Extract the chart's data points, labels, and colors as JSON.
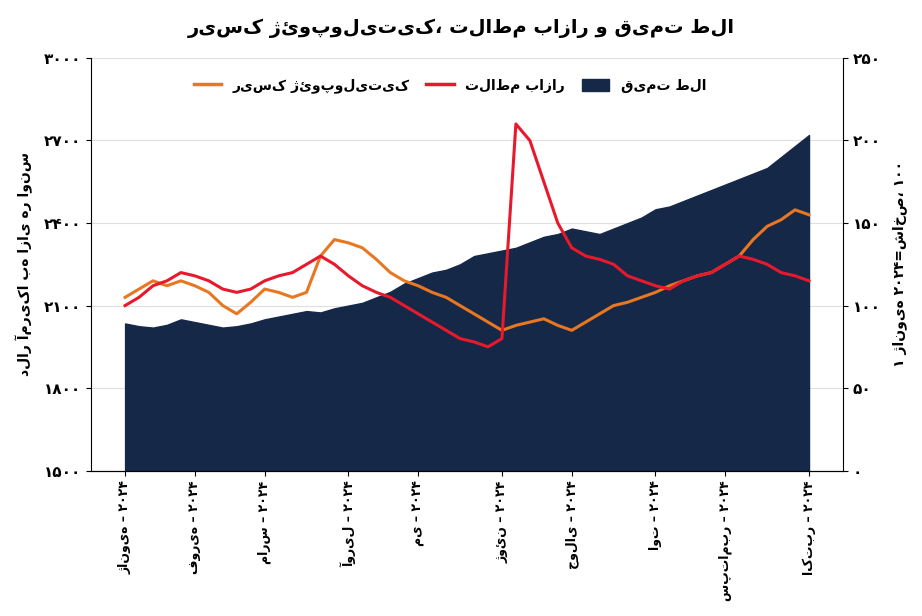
{
  "title": "ریسک ژئوپولیتیک، تلاطم بازار و قیمت طلا",
  "ylabel_left": "دلار آمریکا به ازای هر اونس",
  "ylabel_right": "۱ ژانویه ۲۰۲۴=شاخص، ۱۰۰",
  "x_labels": [
    "ژانویه – ۲۰۲۴",
    "فوریه – ۲۰۲۴",
    "مارس – ۲۰۲۴",
    "آوریل – ۲۰۲۴",
    "می – ۲۰۲۴",
    "ژوئن – ۲۰۲۴",
    "جولای – ۲۰۲۴",
    "اوت – ۲۰۲۴",
    "سپتامبر – ۲۰۲۴",
    "اکتبر – ۲۰۲۴"
  ],
  "legend_geopolitical": "ریسک ژئوپولیتیک",
  "legend_volatility": "تلاطم بازار",
  "legend_gold": "قیمت طلا",
  "gold_price": [
    2035,
    2025,
    2020,
    2030,
    2050,
    2040,
    2030,
    2020,
    2025,
    2035,
    2050,
    2060,
    2070,
    2080,
    2075,
    2090,
    2100,
    2110,
    2130,
    2150,
    2180,
    2200,
    2220,
    2230,
    2250,
    2280,
    2290,
    2300,
    2310,
    2330,
    2350,
    2360,
    2380,
    2370,
    2360,
    2380,
    2400,
    2420,
    2450,
    2460,
    2480,
    2500,
    2520,
    2540,
    2560,
    2580,
    2600,
    2640,
    2680,
    2720
  ],
  "geopolitical_risk": [
    105,
    110,
    115,
    112,
    115,
    112,
    108,
    100,
    95,
    102,
    110,
    108,
    105,
    108,
    130,
    140,
    138,
    135,
    128,
    120,
    115,
    112,
    108,
    105,
    100,
    95,
    90,
    85,
    88,
    90,
    92,
    88,
    85,
    90,
    95,
    100,
    102,
    105,
    108,
    112,
    115,
    118,
    120,
    125,
    130,
    140,
    148,
    152,
    158,
    155
  ],
  "market_volatility": [
    100,
    105,
    112,
    115,
    120,
    118,
    115,
    110,
    108,
    110,
    115,
    118,
    120,
    125,
    130,
    125,
    118,
    112,
    108,
    105,
    100,
    95,
    90,
    85,
    80,
    78,
    75,
    80,
    210,
    200,
    175,
    150,
    135,
    130,
    128,
    125,
    118,
    115,
    112,
    110,
    115,
    118,
    120,
    125,
    130,
    128,
    125,
    120,
    118,
    115
  ],
  "ylim_left": [
    1500,
    3000
  ],
  "ylim_right": [
    0,
    250
  ],
  "yticks_left": [
    1500,
    1800,
    2100,
    2400,
    2700,
    3000
  ],
  "yticks_right": [
    0,
    50,
    100,
    150,
    200,
    250
  ],
  "ytick_labels_left": [
    "۱۵۰۰",
    "۱۸۰۰",
    "۲۱۰۰",
    "۲۴۰۰",
    "۲۷۰۰",
    "۳۰۰۰"
  ],
  "ytick_labels_right": [
    "۰",
    "۵۰",
    "۱۰۰",
    "۱۵۰",
    "۲۰۰",
    "۲۵۰"
  ],
  "gold_color": "#152848",
  "geopolitical_color": "#E87722",
  "volatility_color": "#E8192C",
  "background_color": "#FFFFFF",
  "title_fontsize": 14,
  "label_fontsize": 10
}
